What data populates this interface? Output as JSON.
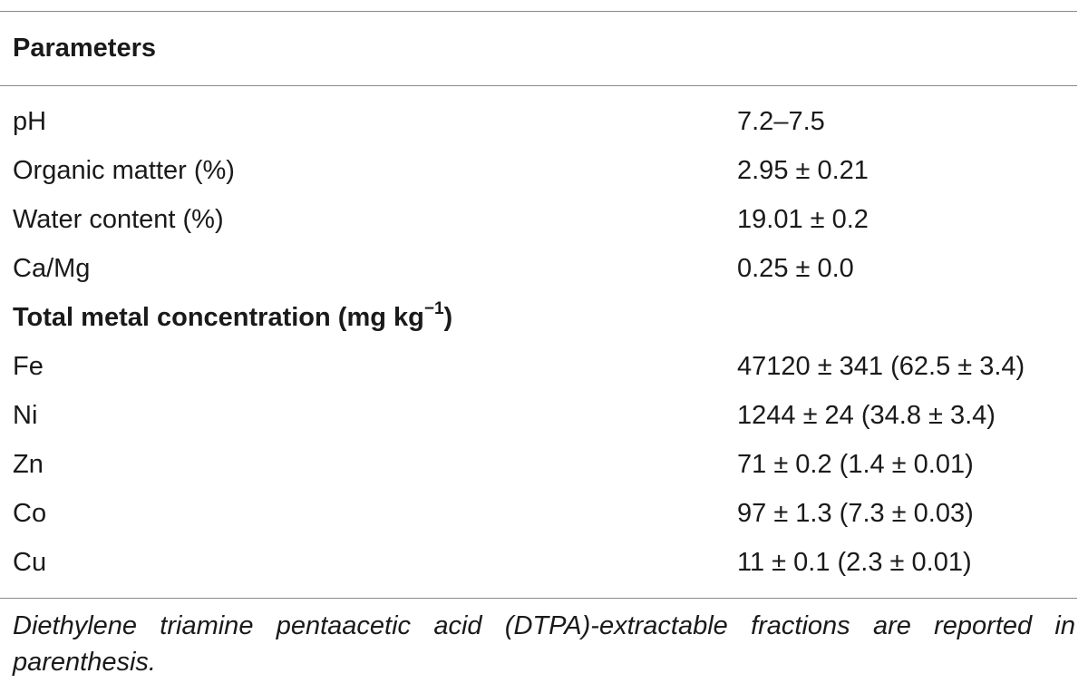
{
  "table": {
    "header": "Parameters",
    "rows": [
      {
        "param": "pH",
        "value": "7.2–7.5"
      },
      {
        "param": "Organic matter (%)",
        "value": "2.95 ± 0.21"
      },
      {
        "param": "Water content (%)",
        "value": "19.01 ± 0.2"
      },
      {
        "param": "Ca/Mg",
        "value": "0.25 ± 0.0"
      }
    ],
    "section": {
      "label": "Total metal concentration (mg kg",
      "superscript": "−1",
      "label_close": ")"
    },
    "metal_rows": [
      {
        "param": "Fe",
        "value": "47120 ± 341 (62.5 ± 3.4)"
      },
      {
        "param": "Ni",
        "value": "1244 ± 24 (34.8 ± 3.4)"
      },
      {
        "param": "Zn",
        "value": "71 ± 0.2 (1.4 ± 0.01)"
      },
      {
        "param": "Co",
        "value": "97 ± 1.3 (7.3 ± 0.03)"
      },
      {
        "param": "Cu",
        "value": "11 ± 0.1 (2.3 ± 0.01)"
      }
    ],
    "footnote": "Diethylene triamine pentaacetic acid (DTPA)-extractable fractions are reported in parenthesis."
  }
}
